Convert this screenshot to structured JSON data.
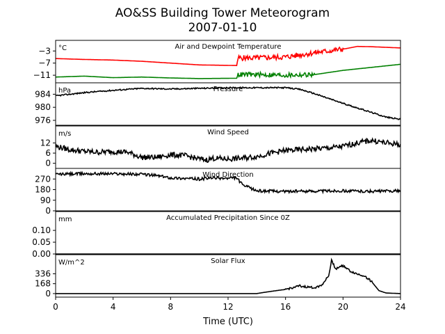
{
  "figure": {
    "title_line1": "AO&SS Building Tower Meteorogram",
    "title_line2": "2007-01-10",
    "xlabel": "Time (UTC)",
    "xticks": [
      0,
      4,
      8,
      12,
      16,
      20,
      24
    ],
    "xlim": [
      0,
      24
    ]
  },
  "chart_data": [
    {
      "type": "line",
      "title": "Air and Dewpoint Temperature",
      "unit": "°C",
      "ylim": [
        -13.5,
        0.5
      ],
      "yticks": [
        -3,
        -7,
        -11
      ],
      "ytick_labels": [
        "−3",
        "−7",
        "−11"
      ],
      "series": [
        {
          "color": "#ff0000",
          "points": [
            [
              0,
              -5.5
            ],
            [
              2,
              -5.8
            ],
            [
              4,
              -6.0
            ],
            [
              6,
              -6.4
            ],
            [
              8,
              -7.0
            ],
            [
              10,
              -7.6
            ],
            [
              12.6,
              -7.8
            ],
            [
              12.7,
              -5.3
            ],
            [
              14,
              -5.3
            ],
            [
              16,
              -5.0
            ],
            [
              18,
              -3.6
            ],
            [
              20,
              -2.4
            ],
            [
              21,
              -1.5
            ],
            [
              22,
              -1.6
            ],
            [
              24,
              -2.0
            ]
          ],
          "noise_from": 12.7,
          "noise_to": 20,
          "noise_amp": 0.9
        },
        {
          "color": "#008000",
          "points": [
            [
              0,
              -11.6
            ],
            [
              2,
              -11.3
            ],
            [
              4,
              -11.8
            ],
            [
              6,
              -11.6
            ],
            [
              8,
              -11.9
            ],
            [
              10,
              -12.1
            ],
            [
              12.6,
              -12.0
            ],
            [
              12.7,
              -10.8
            ],
            [
              14,
              -10.8
            ],
            [
              16,
              -11.0
            ],
            [
              18,
              -10.8
            ],
            [
              20,
              -9.4
            ],
            [
              22,
              -8.4
            ],
            [
              24,
              -7.4
            ]
          ],
          "noise_from": 12.7,
          "noise_to": 18,
          "noise_amp": 0.8
        }
      ]
    },
    {
      "type": "line",
      "title": "Pressure",
      "unit": "hPa",
      "ylim": [
        974.5,
        987.5
      ],
      "yticks": [
        984,
        980,
        976
      ],
      "series": [
        {
          "color": "#000000",
          "points": [
            [
              0,
              983.5
            ],
            [
              2,
              984.5
            ],
            [
              4,
              985.2
            ],
            [
              6,
              985.8
            ],
            [
              8,
              985.6
            ],
            [
              10,
              985.8
            ],
            [
              12,
              986.0
            ],
            [
              14,
              986.0
            ],
            [
              16,
              986.0
            ],
            [
              17,
              985.5
            ],
            [
              18,
              984.2
            ],
            [
              20,
              981.2
            ],
            [
              22,
              978.4
            ],
            [
              23,
              977.0
            ],
            [
              24,
              976.3
            ]
          ],
          "noise_amp": 0.2
        }
      ]
    },
    {
      "type": "line",
      "title": "Wind Speed",
      "unit": "m/s",
      "ylim": [
        -3,
        22
      ],
      "yticks": [
        12,
        6,
        0
      ],
      "series": [
        {
          "color": "#000000",
          "points": [
            [
              0,
              10
            ],
            [
              1,
              8
            ],
            [
              2,
              7
            ],
            [
              3,
              6.5
            ],
            [
              4,
              7
            ],
            [
              5,
              6.5
            ],
            [
              5.5,
              5
            ],
            [
              6,
              3.5
            ],
            [
              7,
              3.5
            ],
            [
              8,
              5
            ],
            [
              9,
              4.5
            ],
            [
              10,
              2.5
            ],
            [
              10.5,
              2
            ],
            [
              11,
              3
            ],
            [
              12,
              2.5
            ],
            [
              13,
              3
            ],
            [
              14,
              4
            ],
            [
              15,
              6
            ],
            [
              16,
              7.5
            ],
            [
              17,
              8
            ],
            [
              18,
              8.5
            ],
            [
              19,
              9
            ],
            [
              20,
              10
            ],
            [
              21,
              12
            ],
            [
              22,
              13.5
            ],
            [
              23,
              12
            ],
            [
              24,
              11
            ]
          ],
          "noise_amp": 1.6
        }
      ]
    },
    {
      "type": "line",
      "title": "Wind Direction",
      "unit": "°",
      "ylim": [
        0,
        360
      ],
      "yticks": [
        270,
        180,
        90,
        0
      ],
      "series": [
        {
          "color": "#000000",
          "points": [
            [
              0,
              310
            ],
            [
              2,
              315
            ],
            [
              4,
              315
            ],
            [
              6,
              310
            ],
            [
              7,
              300
            ],
            [
              8,
              280
            ],
            [
              9,
              275
            ],
            [
              10,
              270
            ],
            [
              11,
              280
            ],
            [
              12,
              275
            ],
            [
              12.6,
              280
            ],
            [
              13,
              220
            ],
            [
              14,
              170
            ],
            [
              16,
              165
            ],
            [
              18,
              168
            ],
            [
              20,
              170
            ],
            [
              22,
              165
            ],
            [
              24,
              170
            ]
          ],
          "noise_amp": 12
        }
      ]
    },
    {
      "type": "line",
      "title": "Accumulated Precipitation Since 0Z",
      "unit": "mm",
      "ylim": [
        0,
        0.18
      ],
      "yticks": [
        0.1,
        0.05,
        0.0
      ],
      "ytick_labels": [
        "0.10",
        "0.05",
        "0.00"
      ],
      "series": [
        {
          "color": "#000000",
          "points": [
            [
              0,
              0
            ],
            [
              24,
              0
            ]
          ],
          "noise_amp": 0
        }
      ]
    },
    {
      "type": "line",
      "title": "Solar Flux",
      "unit": "W/m^2",
      "ylim": [
        -60,
        660
      ],
      "yticks": [
        336,
        168,
        0
      ],
      "series": [
        {
          "color": "#000000",
          "points": [
            [
              0,
              0
            ],
            [
              14,
              0
            ],
            [
              14.5,
              20
            ],
            [
              15.5,
              55
            ],
            [
              16,
              70
            ],
            [
              17,
              130
            ],
            [
              17.5,
              110
            ],
            [
              18,
              100
            ],
            [
              18.5,
              140
            ],
            [
              19,
              300
            ],
            [
              19.2,
              560
            ],
            [
              19.5,
              420
            ],
            [
              20,
              480
            ],
            [
              20.5,
              380
            ],
            [
              21,
              330
            ],
            [
              21.5,
              300
            ],
            [
              22,
              200
            ],
            [
              22.5,
              50
            ],
            [
              23,
              10
            ],
            [
              24,
              0
            ]
          ],
          "noise_amp": 18,
          "noise_from": 16,
          "noise_to": 22
        }
      ]
    }
  ]
}
